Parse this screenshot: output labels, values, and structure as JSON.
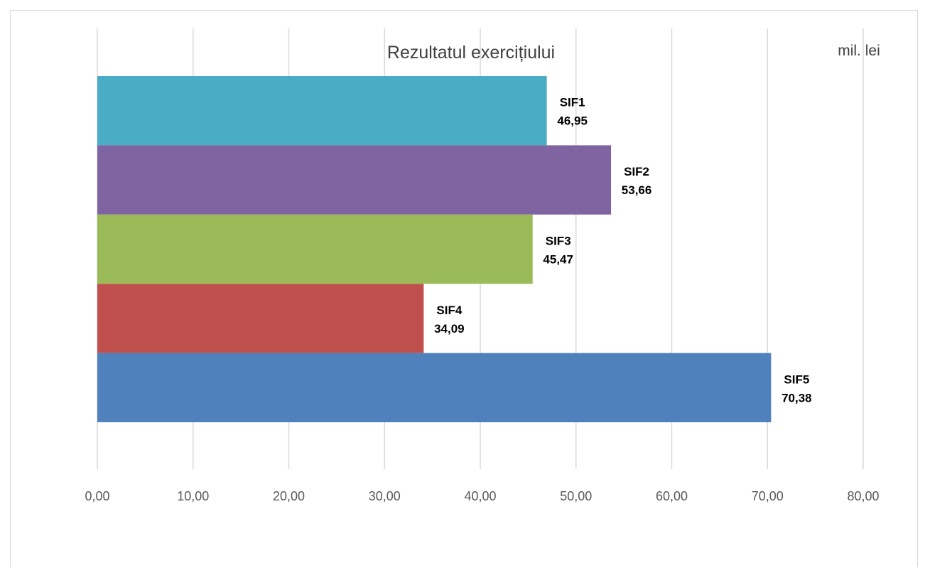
{
  "chart_data": {
    "type": "bar",
    "orientation": "horizontal",
    "title": "Rezultatul exercițiului",
    "unit_label": "mil. lei",
    "categories": [
      "SIF1",
      "SIF2",
      "SIF3",
      "SIF4",
      "SIF5"
    ],
    "values": [
      46.95,
      53.66,
      45.47,
      34.09,
      70.38
    ],
    "value_labels": [
      "46,95",
      "53,66",
      "45,47",
      "34,09",
      "70,38"
    ],
    "colors": [
      "#4bacc6",
      "#8064a2",
      "#9bbb59",
      "#c0504d",
      "#4f81bd"
    ],
    "xlim": [
      0,
      80
    ],
    "x_ticks": [
      0,
      10,
      20,
      30,
      40,
      50,
      60,
      70,
      80
    ],
    "x_tick_labels": [
      "0,00",
      "10,00",
      "20,00",
      "30,00",
      "40,00",
      "50,00",
      "60,00",
      "70,00",
      "80,00"
    ],
    "grid": true,
    "legend": "none"
  }
}
